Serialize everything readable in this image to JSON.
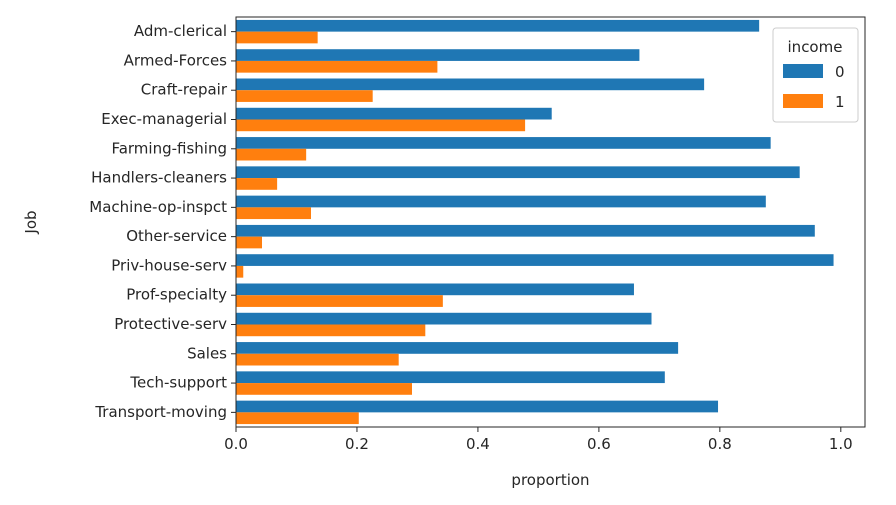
{
  "chart_data": {
    "type": "bar",
    "orientation": "horizontal",
    "title": "",
    "xlabel": "proportion",
    "ylabel": "Job",
    "xlim": [
      0,
      1.04
    ],
    "xticks": [
      0.0,
      0.2,
      0.4,
      0.6,
      0.8,
      1.0
    ],
    "xtick_labels": [
      "0.0",
      "0.2",
      "0.4",
      "0.6",
      "0.8",
      "1.0"
    ],
    "grid": false,
    "legend": {
      "title": "income",
      "placement": "top-right"
    },
    "categories": [
      "Adm-clerical",
      "Armed-Forces",
      "Craft-repair",
      "Exec-managerial",
      "Farming-fishing",
      "Handlers-cleaners",
      "Machine-op-inspct",
      "Other-service",
      "Priv-house-serv",
      "Prof-specialty",
      "Protective-serv",
      "Sales",
      "Tech-support",
      "Transport-moving"
    ],
    "series": [
      {
        "name": "0",
        "color": "#1f77b4",
        "values": [
          0.865,
          0.667,
          0.774,
          0.522,
          0.884,
          0.932,
          0.876,
          0.957,
          0.988,
          0.658,
          0.687,
          0.731,
          0.709,
          0.797
        ]
      },
      {
        "name": "1",
        "color": "#ff7f0e",
        "values": [
          0.135,
          0.333,
          0.226,
          0.478,
          0.116,
          0.068,
          0.124,
          0.043,
          0.012,
          0.342,
          0.313,
          0.269,
          0.291,
          0.203
        ]
      }
    ]
  }
}
